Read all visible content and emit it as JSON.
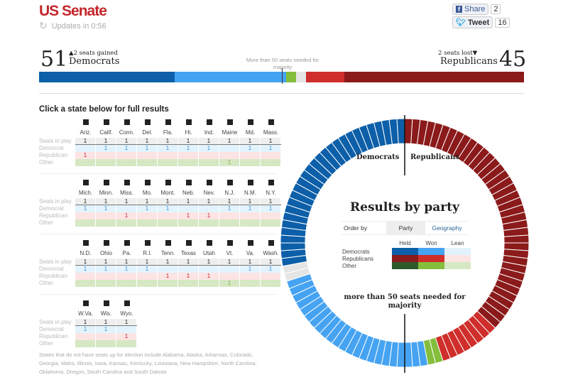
{
  "header": {
    "title": "US Senate",
    "updates": "Updates in 0:56",
    "share_label": "Share",
    "share_count": "2",
    "tweet_label": "Tweet",
    "tweet_count": "16"
  },
  "summary": {
    "dem_count": "51",
    "dem_change": "2 seats gained",
    "dem_label": "Democrats",
    "rep_count": "45",
    "rep_change": "2 seats lost",
    "rep_label": "Republicans",
    "majority_note": "More than 50 seats needed for majority",
    "seats": {
      "dem_held": 28,
      "dem_won": 23,
      "other": 2,
      "undecided": 2,
      "rep_won": 8,
      "rep_held": 37
    }
  },
  "colors": {
    "dem_held": "#0c5fa8",
    "dem_won": "#45a3f2",
    "dem_lean": "#e3f3fd",
    "rep_held": "#8b1a1a",
    "rep_won": "#cf2e2a",
    "rep_lean": "#fde4e4",
    "other_held": "#2f5a2a",
    "other_won": "#84be3c",
    "other_lean": "#d6e8c3",
    "undecided": "#e5e5e5"
  },
  "table": {
    "title": "Click a state below for full results",
    "row_labels": [
      "Seats in play",
      "Democrat",
      "Republican",
      "Other"
    ],
    "blocks": [
      [
        {
          "n": "Ariz.",
          "w": "R"
        },
        {
          "n": "Calif.",
          "w": "D"
        },
        {
          "n": "Conn.",
          "w": "D"
        },
        {
          "n": "Del.",
          "w": "D"
        },
        {
          "n": "Fla.",
          "w": "D"
        },
        {
          "n": "Hi.",
          "w": "D"
        },
        {
          "n": "Ind.",
          "w": "D"
        },
        {
          "n": "Maine",
          "w": "O"
        },
        {
          "n": "Md.",
          "w": "D"
        },
        {
          "n": "Mass.",
          "w": "D"
        }
      ],
      [
        {
          "n": "Mich.",
          "w": "D"
        },
        {
          "n": "Minn.",
          "w": "D"
        },
        {
          "n": "Miss.",
          "w": "R"
        },
        {
          "n": "Mo.",
          "w": "D"
        },
        {
          "n": "Mont.",
          "w": "D"
        },
        {
          "n": "Neb.",
          "w": "R"
        },
        {
          "n": "Nev.",
          "w": "R"
        },
        {
          "n": "N.J.",
          "w": "D"
        },
        {
          "n": "N.M.",
          "w": "D"
        },
        {
          "n": "N.Y.",
          "w": "D"
        }
      ],
      [
        {
          "n": "N.D.",
          "w": "D"
        },
        {
          "n": "Ohio",
          "w": "D"
        },
        {
          "n": "Pa.",
          "w": "D"
        },
        {
          "n": "R.I.",
          "w": "D"
        },
        {
          "n": "Tenn.",
          "w": "R"
        },
        {
          "n": "Texas",
          "w": "R"
        },
        {
          "n": "Utah",
          "w": "R"
        },
        {
          "n": "Vt.",
          "w": "O"
        },
        {
          "n": "Va.",
          "w": "D"
        },
        {
          "n": "Wash.",
          "w": "D"
        }
      ],
      [
        {
          "n": "W.Va.",
          "w": "D"
        },
        {
          "n": "Wis.",
          "w": "D"
        },
        {
          "n": "Wyo.",
          "w": "R"
        }
      ]
    ],
    "seat_value": "1",
    "note": "States that do not have seats up for election include Alabama, Alaska, Arkansas, Colorado, Georgia, Idaho, Illinois, Iowa, Kansas, Kentucky, Louisiana, New Hampshire, North Carolina, Oklahoma, Oregon, South Carolina and South Dakota"
  },
  "donut": {
    "dem_label": "Democrats",
    "rep_label": "Republicans",
    "title": "Results by party",
    "order_by": "Order by",
    "tab_party": "Party",
    "tab_geography": "Geography",
    "legend_cols": [
      "Held",
      "Won",
      "Lean"
    ],
    "legend_rows": [
      "Democrats",
      "Republicans",
      "Other"
    ],
    "majority": "more than 50 seats needed for majority"
  }
}
